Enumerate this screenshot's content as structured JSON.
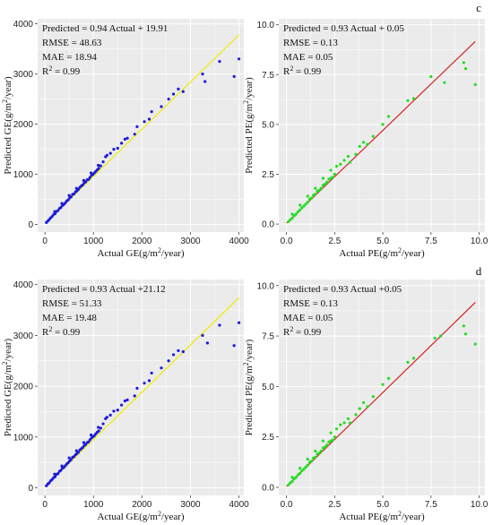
{
  "chart_data": [
    {
      "type": "scatter",
      "panel_label": "",
      "xlabel": "Actual GE(g/m²/year)",
      "ylabel": "Predicted GE(g/m²/year)",
      "xlim": [
        -150,
        4100
      ],
      "ylim": [
        -150,
        4100
      ],
      "xticks": [
        "0",
        "1000",
        "2000",
        "3000",
        "4000"
      ],
      "yticks": [
        "0",
        "1000",
        "2000",
        "3000",
        "4000"
      ],
      "annotations": [
        "Predicted = 0.94 Actual + 19.91",
        "RMSE = 48.63",
        "MAE = 18.94",
        "R² = 0.99"
      ],
      "fit": {
        "slope": 0.94,
        "intercept": 19.91,
        "x_range": [
          0,
          4000
        ],
        "color": "#f2ea00"
      },
      "point_color": "#1a1adb",
      "points": [
        [
          30,
          40
        ],
        [
          60,
          70
        ],
        [
          90,
          100
        ],
        [
          120,
          135
        ],
        [
          150,
          160
        ],
        [
          180,
          200
        ],
        [
          210,
          215
        ],
        [
          240,
          260
        ],
        [
          270,
          280
        ],
        [
          300,
          320
        ],
        [
          330,
          340
        ],
        [
          360,
          380
        ],
        [
          390,
          400
        ],
        [
          420,
          430
        ],
        [
          450,
          470
        ],
        [
          480,
          490
        ],
        [
          510,
          530
        ],
        [
          540,
          550
        ],
        [
          570,
          600
        ],
        [
          600,
          610
        ],
        [
          630,
          650
        ],
        [
          660,
          670
        ],
        [
          690,
          700
        ],
        [
          720,
          740
        ],
        [
          750,
          770
        ],
        [
          780,
          790
        ],
        [
          810,
          830
        ],
        [
          840,
          850
        ],
        [
          870,
          890
        ],
        [
          900,
          900
        ],
        [
          930,
          940
        ],
        [
          960,
          980
        ],
        [
          990,
          1000
        ],
        [
          1020,
          1030
        ],
        [
          1050,
          1060
        ],
        [
          1080,
          1090
        ],
        [
          1110,
          1120
        ],
        [
          1150,
          1170
        ],
        [
          200,
          260
        ],
        [
          350,
          420
        ],
        [
          500,
          580
        ],
        [
          650,
          720
        ],
        [
          800,
          880
        ],
        [
          950,
          1030
        ],
        [
          1100,
          1180
        ],
        [
          1200,
          1250
        ],
        [
          1250,
          1350
        ],
        [
          1280,
          1380
        ],
        [
          1350,
          1420
        ],
        [
          1420,
          1500
        ],
        [
          1500,
          1520
        ],
        [
          1580,
          1620
        ],
        [
          1650,
          1700
        ],
        [
          1700,
          1720
        ],
        [
          1850,
          1800
        ],
        [
          1900,
          1950
        ],
        [
          2050,
          2050
        ],
        [
          2150,
          2100
        ],
        [
          2200,
          2250
        ],
        [
          2400,
          2350
        ],
        [
          2550,
          2500
        ],
        [
          2650,
          2600
        ],
        [
          2750,
          2700
        ],
        [
          2850,
          2650
        ],
        [
          3250,
          3000
        ],
        [
          3300,
          2850
        ],
        [
          3600,
          3250
        ],
        [
          3900,
          2950
        ],
        [
          4000,
          3300
        ]
      ]
    },
    {
      "type": "scatter",
      "panel_label": "c",
      "xlabel": "Actual PE(g/m²/year)",
      "ylabel": "Predicted PE(g/m²/year)",
      "xlim": [
        -0.4,
        10.3
      ],
      "ylim": [
        -0.4,
        10.3
      ],
      "xticks": [
        "0.0",
        "2.5",
        "5.0",
        "7.5",
        "10.0"
      ],
      "yticks": [
        "0.0",
        "2.5",
        "5.0",
        "7.5",
        "10.0"
      ],
      "annotations": [
        "Predicted = 0.93 Actual + 0.05",
        "RMSE = 0.13",
        "MAE = 0.05",
        "R² = 0.99"
      ],
      "fit": {
        "slope": 0.93,
        "intercept": 0.05,
        "x_range": [
          0,
          9.8
        ],
        "color": "#d42020"
      },
      "point_color": "#22dd22",
      "points": [
        [
          0.1,
          0.12
        ],
        [
          0.2,
          0.22
        ],
        [
          0.3,
          0.3
        ],
        [
          0.4,
          0.42
        ],
        [
          0.5,
          0.5
        ],
        [
          0.6,
          0.62
        ],
        [
          0.7,
          0.7
        ],
        [
          0.8,
          0.82
        ],
        [
          0.9,
          0.9
        ],
        [
          1.0,
          1.0
        ],
        [
          1.1,
          1.1
        ],
        [
          1.2,
          1.25
        ],
        [
          1.3,
          1.3
        ],
        [
          1.4,
          1.45
        ],
        [
          1.5,
          1.5
        ],
        [
          1.6,
          1.65
        ],
        [
          1.7,
          1.7
        ],
        [
          1.8,
          1.8
        ],
        [
          1.9,
          1.95
        ],
        [
          2.0,
          2.0
        ],
        [
          2.1,
          2.1
        ],
        [
          2.2,
          2.25
        ],
        [
          2.3,
          2.3
        ],
        [
          2.4,
          2.35
        ],
        [
          2.5,
          2.5
        ],
        [
          0.3,
          0.5
        ],
        [
          0.7,
          0.95
        ],
        [
          1.1,
          1.4
        ],
        [
          1.5,
          1.8
        ],
        [
          1.9,
          2.3
        ],
        [
          2.3,
          2.7
        ],
        [
          2.6,
          2.9
        ],
        [
          2.8,
          3.0
        ],
        [
          3.0,
          3.2
        ],
        [
          3.2,
          3.4
        ],
        [
          3.3,
          3.1
        ],
        [
          3.6,
          3.5
        ],
        [
          3.8,
          3.9
        ],
        [
          4.0,
          4.1
        ],
        [
          4.2,
          4.0
        ],
        [
          4.5,
          4.4
        ],
        [
          5.0,
          5.0
        ],
        [
          5.3,
          5.4
        ],
        [
          6.3,
          6.2
        ],
        [
          6.6,
          6.3
        ],
        [
          7.5,
          7.4
        ],
        [
          8.2,
          7.1
        ],
        [
          9.2,
          8.1
        ],
        [
          9.3,
          7.8
        ],
        [
          9.8,
          7.0
        ]
      ]
    },
    {
      "type": "scatter",
      "panel_label": "",
      "xlabel": "Actual GE(g/m²/year)",
      "ylabel": "Predicted GE(g/m²/year)",
      "xlim": [
        -150,
        4100
      ],
      "ylim": [
        -150,
        4100
      ],
      "xticks": [
        "0",
        "1000",
        "2000",
        "3000",
        "4000"
      ],
      "yticks": [
        "0",
        "1000",
        "2000",
        "3000",
        "4000"
      ],
      "annotations": [
        "Predicted = 0.93 Actual +21.12",
        "RMSE = 51.33",
        "MAE = 19.48",
        "R² = 0.99"
      ],
      "fit": {
        "slope": 0.93,
        "intercept": 21.12,
        "x_range": [
          0,
          4000
        ],
        "color": "#f2ea00"
      },
      "point_color": "#1a1adb",
      "points": [
        [
          30,
          40
        ],
        [
          60,
          75
        ],
        [
          90,
          100
        ],
        [
          120,
          140
        ],
        [
          150,
          165
        ],
        [
          180,
          200
        ],
        [
          210,
          220
        ],
        [
          240,
          265
        ],
        [
          270,
          280
        ],
        [
          300,
          325
        ],
        [
          330,
          345
        ],
        [
          360,
          385
        ],
        [
          390,
          400
        ],
        [
          420,
          435
        ],
        [
          450,
          470
        ],
        [
          480,
          495
        ],
        [
          510,
          530
        ],
        [
          540,
          555
        ],
        [
          570,
          600
        ],
        [
          600,
          615
        ],
        [
          630,
          650
        ],
        [
          660,
          675
        ],
        [
          690,
          700
        ],
        [
          720,
          745
        ],
        [
          750,
          770
        ],
        [
          780,
          795
        ],
        [
          810,
          830
        ],
        [
          840,
          855
        ],
        [
          870,
          890
        ],
        [
          900,
          905
        ],
        [
          930,
          945
        ],
        [
          960,
          980
        ],
        [
          990,
          1005
        ],
        [
          1020,
          1030
        ],
        [
          1050,
          1065
        ],
        [
          1080,
          1095
        ],
        [
          1110,
          1120
        ],
        [
          1150,
          1175
        ],
        [
          200,
          270
        ],
        [
          350,
          430
        ],
        [
          500,
          590
        ],
        [
          650,
          730
        ],
        [
          800,
          890
        ],
        [
          950,
          1040
        ],
        [
          1100,
          1190
        ],
        [
          1200,
          1260
        ],
        [
          1250,
          1360
        ],
        [
          1280,
          1390
        ],
        [
          1350,
          1430
        ],
        [
          1420,
          1510
        ],
        [
          1500,
          1530
        ],
        [
          1580,
          1630
        ],
        [
          1650,
          1710
        ],
        [
          1700,
          1730
        ],
        [
          1850,
          1810
        ],
        [
          1900,
          1960
        ],
        [
          2050,
          2060
        ],
        [
          2150,
          2110
        ],
        [
          2200,
          2260
        ],
        [
          2400,
          2360
        ],
        [
          2550,
          2500
        ],
        [
          2650,
          2620
        ],
        [
          2750,
          2700
        ],
        [
          2850,
          2680
        ],
        [
          3250,
          3000
        ],
        [
          3350,
          2850
        ],
        [
          3600,
          3200
        ],
        [
          3900,
          2800
        ],
        [
          4000,
          3250
        ]
      ]
    },
    {
      "type": "scatter",
      "panel_label": "d",
      "xlabel": "Actual PE(g/m²/year)",
      "ylabel": "Predicted PE(g/m²/year)",
      "xlim": [
        -0.4,
        10.3
      ],
      "ylim": [
        -0.4,
        10.3
      ],
      "xticks": [
        "0.0",
        "2.5",
        "5.0",
        "7.5",
        "10.0"
      ],
      "yticks": [
        "0.0",
        "2.5",
        "5.0",
        "7.5",
        "10.0"
      ],
      "annotations": [
        "Predicted = 0.93 Actual +0.05",
        "RMSE = 0.13",
        "MAE = 0.05",
        "R² = 0.99"
      ],
      "fit": {
        "slope": 0.93,
        "intercept": 0.05,
        "x_range": [
          0,
          9.8
        ],
        "color": "#d42020"
      },
      "point_color": "#22dd22",
      "points": [
        [
          0.1,
          0.12
        ],
        [
          0.2,
          0.22
        ],
        [
          0.3,
          0.3
        ],
        [
          0.4,
          0.42
        ],
        [
          0.5,
          0.5
        ],
        [
          0.6,
          0.62
        ],
        [
          0.7,
          0.7
        ],
        [
          0.8,
          0.82
        ],
        [
          0.9,
          0.9
        ],
        [
          1.0,
          1.0
        ],
        [
          1.1,
          1.1
        ],
        [
          1.2,
          1.25
        ],
        [
          1.3,
          1.3
        ],
        [
          1.4,
          1.45
        ],
        [
          1.5,
          1.5
        ],
        [
          1.6,
          1.65
        ],
        [
          1.7,
          1.7
        ],
        [
          1.8,
          1.8
        ],
        [
          1.9,
          1.95
        ],
        [
          2.0,
          2.0
        ],
        [
          2.1,
          2.1
        ],
        [
          2.2,
          2.25
        ],
        [
          2.3,
          2.3
        ],
        [
          2.4,
          2.35
        ],
        [
          2.5,
          2.5
        ],
        [
          0.3,
          0.5
        ],
        [
          0.7,
          0.95
        ],
        [
          1.1,
          1.4
        ],
        [
          1.5,
          1.8
        ],
        [
          1.9,
          2.3
        ],
        [
          2.3,
          2.7
        ],
        [
          2.6,
          2.9
        ],
        [
          2.8,
          3.1
        ],
        [
          3.0,
          3.2
        ],
        [
          3.2,
          3.4
        ],
        [
          3.3,
          3.2
        ],
        [
          3.6,
          3.6
        ],
        [
          3.8,
          3.9
        ],
        [
          4.0,
          4.2
        ],
        [
          4.2,
          4.0
        ],
        [
          4.5,
          4.5
        ],
        [
          5.0,
          5.1
        ],
        [
          5.3,
          5.4
        ],
        [
          6.3,
          6.2
        ],
        [
          6.6,
          6.4
        ],
        [
          7.7,
          7.4
        ],
        [
          8.0,
          7.5
        ],
        [
          9.2,
          8.0
        ],
        [
          9.3,
          7.6
        ],
        [
          9.8,
          7.1
        ]
      ]
    }
  ]
}
